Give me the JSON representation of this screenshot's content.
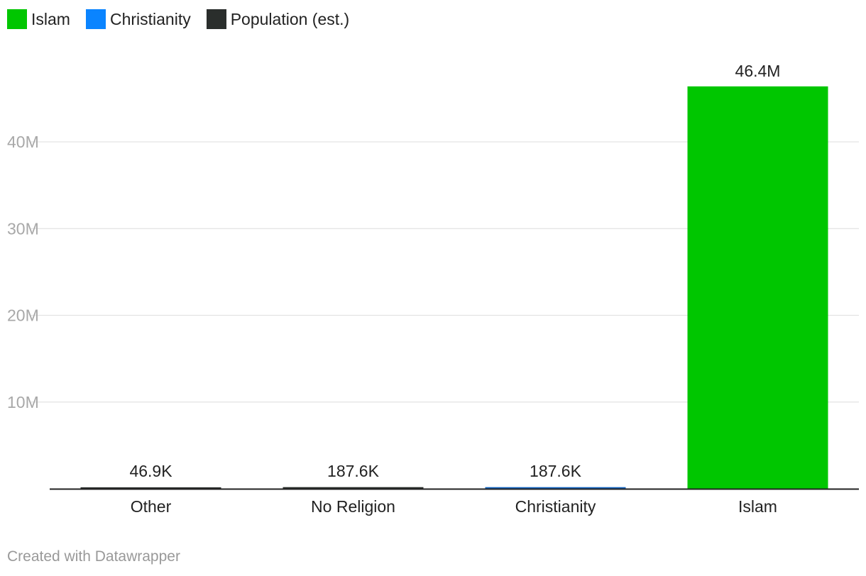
{
  "chart_data": {
    "type": "bar",
    "title": "",
    "xlabel": "",
    "ylabel": "",
    "categories": [
      "Other",
      "No Religion",
      "Christianity",
      "Islam"
    ],
    "values": [
      46900,
      187600,
      187600,
      46400000
    ],
    "value_labels": [
      "46.9K",
      "187.6K",
      "187.6K",
      "46.4M"
    ],
    "bar_colors": [
      "#2a2e2c",
      "#2a2e2c",
      "#1565c0",
      "#00c600"
    ],
    "ylim": [
      0,
      50000000
    ],
    "yticks": [
      10000000,
      20000000,
      30000000,
      40000000
    ],
    "ytick_labels": [
      "10M",
      "20M",
      "30M",
      "40M"
    ],
    "grid": true,
    "legend": [
      {
        "label": "Islam",
        "color": "#00c600"
      },
      {
        "label": "Christianity",
        "color": "#0a84ff"
      },
      {
        "label": "Population (est.)",
        "color": "#2a2e2c"
      }
    ]
  },
  "footer": "Created with Datawrapper"
}
